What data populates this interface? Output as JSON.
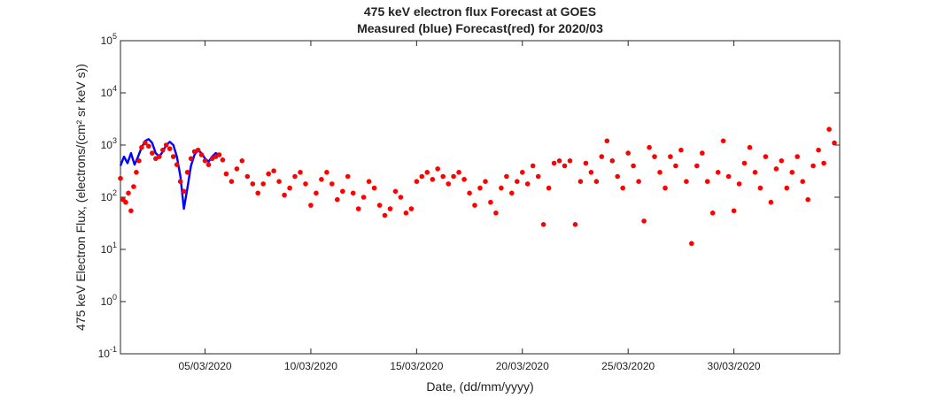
{
  "chart_data": {
    "type": "scatter",
    "title": [
      "475 keV electron flux Forecast at GOES",
      "Measured (blue) Forecast(red) for 2020/03"
    ],
    "xlabel": "Date, (dd/mm/yyyy)",
    "ylabel": "475 keV Electron Flux, (electrons/(cm² sr keV s))",
    "x_tick_labels": [
      "05/03/2020",
      "10/03/2020",
      "15/03/2020",
      "20/03/2020",
      "25/03/2020",
      "30/03/2020"
    ],
    "x_tick_dates": [
      "2020-03-05",
      "2020-03-10",
      "2020-03-15",
      "2020-03-20",
      "2020-03-25",
      "2020-03-30"
    ],
    "xlim": [
      "2020-03-01",
      "2020-04-04"
    ],
    "y_scale": "log",
    "ylim": [
      0.1,
      100000
    ],
    "y_tick_exponents": [
      -1,
      0,
      1,
      2,
      3,
      4,
      5
    ],
    "grid": false,
    "colors": {
      "measured": "#0000ff",
      "forecast": "#ff0000",
      "axes": "#262626"
    },
    "series": [
      {
        "name": "Measured (blue)",
        "style": "line",
        "points": [
          [
            "2020-03-01 00:00",
            400
          ],
          [
            "2020-03-01 04:00",
            600
          ],
          [
            "2020-03-01 08:00",
            450
          ],
          [
            "2020-03-01 12:00",
            700
          ],
          [
            "2020-03-01 16:00",
            420
          ],
          [
            "2020-03-01 20:00",
            600
          ],
          [
            "2020-03-02 00:00",
            900
          ],
          [
            "2020-03-02 04:00",
            1200
          ],
          [
            "2020-03-02 08:00",
            1300
          ],
          [
            "2020-03-02 12:00",
            1100
          ],
          [
            "2020-03-02 16:00",
            700
          ],
          [
            "2020-03-02 20:00",
            600
          ],
          [
            "2020-03-03 00:00",
            750
          ],
          [
            "2020-03-03 04:00",
            1000
          ],
          [
            "2020-03-03 08:00",
            1150
          ],
          [
            "2020-03-03 12:00",
            1000
          ],
          [
            "2020-03-03 16:00",
            600
          ],
          [
            "2020-03-03 20:00",
            250
          ],
          [
            "2020-03-04 00:00",
            60
          ],
          [
            "2020-03-04 04:00",
            150
          ],
          [
            "2020-03-04 08:00",
            400
          ],
          [
            "2020-03-04 12:00",
            650
          ],
          [
            "2020-03-04 16:00",
            800
          ],
          [
            "2020-03-04 20:00",
            700
          ],
          [
            "2020-03-05 00:00",
            550
          ],
          [
            "2020-03-05 04:00",
            480
          ],
          [
            "2020-03-05 08:00",
            600
          ],
          [
            "2020-03-05 12:00",
            700
          ],
          [
            "2020-03-05 16:00",
            650
          ]
        ]
      },
      {
        "name": "Forecast(red)",
        "style": "markers",
        "points": [
          [
            "2020-03-01 00:00",
            230
          ],
          [
            "2020-03-01 03:00",
            90
          ],
          [
            "2020-03-01 06:00",
            80
          ],
          [
            "2020-03-01 09:00",
            120
          ],
          [
            "2020-03-01 12:00",
            55
          ],
          [
            "2020-03-01 15:00",
            160
          ],
          [
            "2020-03-01 18:00",
            300
          ],
          [
            "2020-03-01 21:00",
            500
          ],
          [
            "2020-03-02 00:00",
            900
          ],
          [
            "2020-03-02 04:00",
            1100
          ],
          [
            "2020-03-02 08:00",
            950
          ],
          [
            "2020-03-02 12:00",
            700
          ],
          [
            "2020-03-02 16:00",
            550
          ],
          [
            "2020-03-02 20:00",
            600
          ],
          [
            "2020-03-03 00:00",
            800
          ],
          [
            "2020-03-03 04:00",
            1000
          ],
          [
            "2020-03-03 08:00",
            850
          ],
          [
            "2020-03-03 12:00",
            600
          ],
          [
            "2020-03-03 16:00",
            420
          ],
          [
            "2020-03-03 20:00",
            200
          ],
          [
            "2020-03-04 00:00",
            130
          ],
          [
            "2020-03-04 04:00",
            300
          ],
          [
            "2020-03-04 08:00",
            550
          ],
          [
            "2020-03-04 12:00",
            750
          ],
          [
            "2020-03-04 16:00",
            800
          ],
          [
            "2020-03-04 20:00",
            650
          ],
          [
            "2020-03-05 00:00",
            500
          ],
          [
            "2020-03-05 04:00",
            420
          ],
          [
            "2020-03-05 08:00",
            550
          ],
          [
            "2020-03-05 12:00",
            600
          ],
          [
            "2020-03-05 16:00",
            650
          ],
          [
            "2020-03-05 20:00",
            520
          ],
          [
            "2020-03-06 00:00",
            280
          ],
          [
            "2020-03-06 06:00",
            200
          ],
          [
            "2020-03-06 12:00",
            350
          ],
          [
            "2020-03-06 18:00",
            500
          ],
          [
            "2020-03-07 00:00",
            250
          ],
          [
            "2020-03-07 06:00",
            180
          ],
          [
            "2020-03-07 12:00",
            120
          ],
          [
            "2020-03-07 18:00",
            180
          ],
          [
            "2020-03-08 00:00",
            280
          ],
          [
            "2020-03-08 06:00",
            320
          ],
          [
            "2020-03-08 12:00",
            200
          ],
          [
            "2020-03-08 18:00",
            110
          ],
          [
            "2020-03-09 00:00",
            150
          ],
          [
            "2020-03-09 06:00",
            250
          ],
          [
            "2020-03-09 12:00",
            300
          ],
          [
            "2020-03-09 18:00",
            180
          ],
          [
            "2020-03-10 00:00",
            70
          ],
          [
            "2020-03-10 06:00",
            120
          ],
          [
            "2020-03-10 12:00",
            220
          ],
          [
            "2020-03-10 18:00",
            300
          ],
          [
            "2020-03-11 00:00",
            180
          ],
          [
            "2020-03-11 06:00",
            90
          ],
          [
            "2020-03-11 12:00",
            130
          ],
          [
            "2020-03-11 18:00",
            250
          ],
          [
            "2020-03-12 00:00",
            120
          ],
          [
            "2020-03-12 06:00",
            60
          ],
          [
            "2020-03-12 12:00",
            100
          ],
          [
            "2020-03-12 18:00",
            200
          ],
          [
            "2020-03-13 00:00",
            150
          ],
          [
            "2020-03-13 06:00",
            70
          ],
          [
            "2020-03-13 12:00",
            45
          ],
          [
            "2020-03-13 18:00",
            60
          ],
          [
            "2020-03-14 00:00",
            130
          ],
          [
            "2020-03-14 06:00",
            100
          ],
          [
            "2020-03-14 12:00",
            50
          ],
          [
            "2020-03-14 18:00",
            60
          ],
          [
            "2020-03-15 00:00",
            200
          ],
          [
            "2020-03-15 06:00",
            250
          ],
          [
            "2020-03-15 12:00",
            300
          ],
          [
            "2020-03-15 18:00",
            220
          ],
          [
            "2020-03-16 00:00",
            350
          ],
          [
            "2020-03-16 06:00",
            250
          ],
          [
            "2020-03-16 12:00",
            180
          ],
          [
            "2020-03-16 18:00",
            250
          ],
          [
            "2020-03-17 00:00",
            300
          ],
          [
            "2020-03-17 06:00",
            220
          ],
          [
            "2020-03-17 12:00",
            120
          ],
          [
            "2020-03-17 18:00",
            70
          ],
          [
            "2020-03-18 00:00",
            150
          ],
          [
            "2020-03-18 06:00",
            200
          ],
          [
            "2020-03-18 12:00",
            80
          ],
          [
            "2020-03-18 18:00",
            50
          ],
          [
            "2020-03-19 00:00",
            150
          ],
          [
            "2020-03-19 06:00",
            250
          ],
          [
            "2020-03-19 12:00",
            120
          ],
          [
            "2020-03-19 18:00",
            200
          ],
          [
            "2020-03-20 00:00",
            300
          ],
          [
            "2020-03-20 06:00",
            180
          ],
          [
            "2020-03-20 12:00",
            400
          ],
          [
            "2020-03-20 18:00",
            250
          ],
          [
            "2020-03-21 00:00",
            30
          ],
          [
            "2020-03-21 06:00",
            150
          ],
          [
            "2020-03-21 12:00",
            450
          ],
          [
            "2020-03-21 18:00",
            500
          ],
          [
            "2020-03-22 00:00",
            400
          ],
          [
            "2020-03-22 06:00",
            500
          ],
          [
            "2020-03-22 12:00",
            30
          ],
          [
            "2020-03-22 18:00",
            200
          ],
          [
            "2020-03-23 00:00",
            450
          ],
          [
            "2020-03-23 06:00",
            300
          ],
          [
            "2020-03-23 12:00",
            200
          ],
          [
            "2020-03-23 18:00",
            600
          ],
          [
            "2020-03-24 00:00",
            1200
          ],
          [
            "2020-03-24 06:00",
            500
          ],
          [
            "2020-03-24 12:00",
            250
          ],
          [
            "2020-03-24 18:00",
            150
          ],
          [
            "2020-03-25 00:00",
            700
          ],
          [
            "2020-03-25 06:00",
            400
          ],
          [
            "2020-03-25 12:00",
            200
          ],
          [
            "2020-03-25 18:00",
            35
          ],
          [
            "2020-03-26 00:00",
            900
          ],
          [
            "2020-03-26 06:00",
            600
          ],
          [
            "2020-03-26 12:00",
            300
          ],
          [
            "2020-03-26 18:00",
            150
          ],
          [
            "2020-03-27 00:00",
            600
          ],
          [
            "2020-03-27 06:00",
            400
          ],
          [
            "2020-03-27 12:00",
            800
          ],
          [
            "2020-03-27 18:00",
            200
          ],
          [
            "2020-03-28 00:00",
            13
          ],
          [
            "2020-03-28 06:00",
            400
          ],
          [
            "2020-03-28 12:00",
            700
          ],
          [
            "2020-03-28 18:00",
            200
          ],
          [
            "2020-03-29 00:00",
            50
          ],
          [
            "2020-03-29 06:00",
            300
          ],
          [
            "2020-03-29 12:00",
            1200
          ],
          [
            "2020-03-29 18:00",
            250
          ],
          [
            "2020-03-30 00:00",
            55
          ],
          [
            "2020-03-30 06:00",
            180
          ],
          [
            "2020-03-30 12:00",
            450
          ],
          [
            "2020-03-30 18:00",
            900
          ],
          [
            "2020-03-31 00:00",
            300
          ],
          [
            "2020-03-31 06:00",
            150
          ],
          [
            "2020-03-31 12:00",
            600
          ],
          [
            "2020-03-31 18:00",
            80
          ],
          [
            "2020-04-01 00:00",
            350
          ],
          [
            "2020-04-01 06:00",
            500
          ],
          [
            "2020-04-01 12:00",
            150
          ],
          [
            "2020-04-01 18:00",
            300
          ],
          [
            "2020-04-02 00:00",
            600
          ],
          [
            "2020-04-02 06:00",
            200
          ],
          [
            "2020-04-02 12:00",
            90
          ],
          [
            "2020-04-02 18:00",
            400
          ],
          [
            "2020-04-03 00:00",
            800
          ],
          [
            "2020-04-03 06:00",
            450
          ],
          [
            "2020-04-03 12:00",
            2000
          ],
          [
            "2020-04-03 18:00",
            1100
          ]
        ]
      }
    ]
  }
}
